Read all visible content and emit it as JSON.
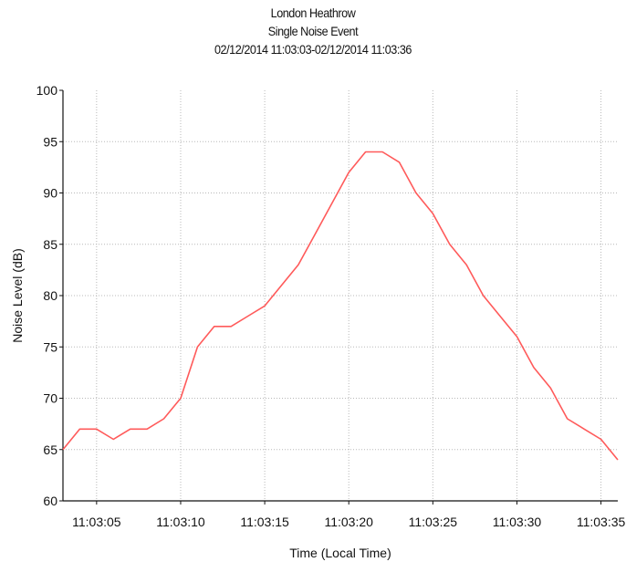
{
  "chart_data": {
    "type": "line",
    "title": "London Heathrow",
    "subtitle": "Single Noise Event",
    "period": "02/12/2014 11:03:03-02/12/2014 11:03:36",
    "xlabel": "Time (Local Time)",
    "ylabel": "Noise Level (dB)",
    "xlim": [
      "11:03:03",
      "11:03:36"
    ],
    "ylim": [
      60,
      100
    ],
    "x_ticks": [
      "11:03:05",
      "11:03:10",
      "11:03:15",
      "11:03:20",
      "11:03:25",
      "11:03:30",
      "11:03:35"
    ],
    "y_ticks": [
      60,
      65,
      70,
      75,
      80,
      85,
      90,
      95,
      100
    ],
    "grid": true,
    "line_color": "#ff5a5a",
    "series": [
      {
        "x": [
          "11:03:03",
          "11:03:04",
          "11:03:05",
          "11:03:06",
          "11:03:07",
          "11:03:08",
          "11:03:09",
          "11:03:10",
          "11:03:11",
          "11:03:12",
          "11:03:13",
          "11:03:14",
          "11:03:15",
          "11:03:16",
          "11:03:17",
          "11:03:18",
          "11:03:19",
          "11:03:20",
          "11:03:21",
          "11:03:22",
          "11:03:23",
          "11:03:24",
          "11:03:25",
          "11:03:26",
          "11:03:27",
          "11:03:28",
          "11:03:29",
          "11:03:30",
          "11:03:31",
          "11:03:32",
          "11:03:33",
          "11:03:34",
          "11:03:35",
          "11:03:36"
        ],
        "values": [
          65,
          67,
          67,
          66,
          67,
          67,
          68,
          70,
          75,
          77,
          77,
          78,
          79,
          81,
          83,
          86,
          89,
          92,
          94,
          94,
          93,
          90,
          88,
          85,
          83,
          80,
          78,
          76,
          73,
          71,
          68,
          67,
          66,
          64
        ]
      }
    ]
  }
}
